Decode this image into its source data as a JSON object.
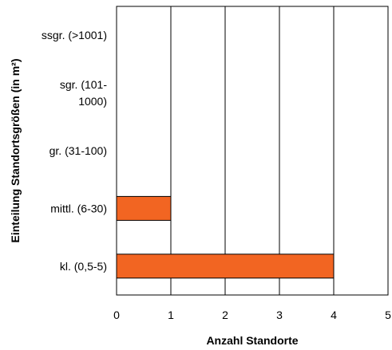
{
  "chart_data": {
    "type": "bar",
    "orientation": "horizontal",
    "categories": [
      "kl. (0,5-5)",
      "mittl. (6-30)",
      "gr. (31-100)",
      "sgr. (101-1000)",
      "ssgr. (>1001)"
    ],
    "category_labels": [
      [
        "kl. (0,5-5)"
      ],
      [
        "mittl. (6-30)"
      ],
      [
        "gr. (31-100)"
      ],
      [
        "sgr. (101-",
        "1000)"
      ],
      [
        "ssgr. (>1001)"
      ]
    ],
    "values": [
      4,
      1,
      0,
      0,
      0
    ],
    "xlabel": "Anzahl Standorte",
    "ylabel": "Einteilung Standortsgrößen (in m²)",
    "xlim": [
      0,
      5
    ],
    "xticks": [
      "0",
      "1",
      "2",
      "3",
      "4",
      "5"
    ],
    "grid": true,
    "bar_color": "#f26522"
  }
}
